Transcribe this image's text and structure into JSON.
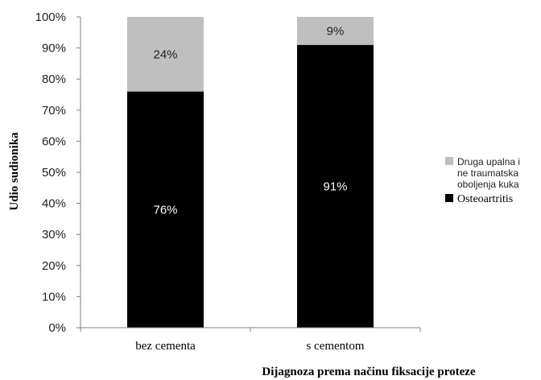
{
  "chart_data": {
    "type": "bar",
    "stacked": true,
    "percent": true,
    "categories": [
      "bez cementa",
      "s cementom"
    ],
    "series": [
      {
        "name": "Osteoartritis",
        "values": [
          76,
          91
        ],
        "labels": [
          "76%",
          "91%"
        ],
        "color": "#000000",
        "label_color": "#ffffff"
      },
      {
        "name": "Druga upalna i ne traumatska oboljenja kuka",
        "name_lines": [
          "Druga upalna i",
          "ne traumatska",
          "oboljenja kuka"
        ],
        "values": [
          24,
          9
        ],
        "labels": [
          "24%",
          "9%"
        ],
        "color": "#bfbfbf",
        "label_color": "#222222"
      }
    ],
    "xlabel": "Dijagnoza prema načinu fiksacije proteze",
    "ylabel": "Udio sudionika",
    "ylim": [
      0,
      100
    ],
    "yticks": [
      "0%",
      "10%",
      "20%",
      "30%",
      "40%",
      "50%",
      "60%",
      "70%",
      "80%",
      "90%",
      "100%"
    ],
    "grid": false,
    "legend": "right"
  }
}
